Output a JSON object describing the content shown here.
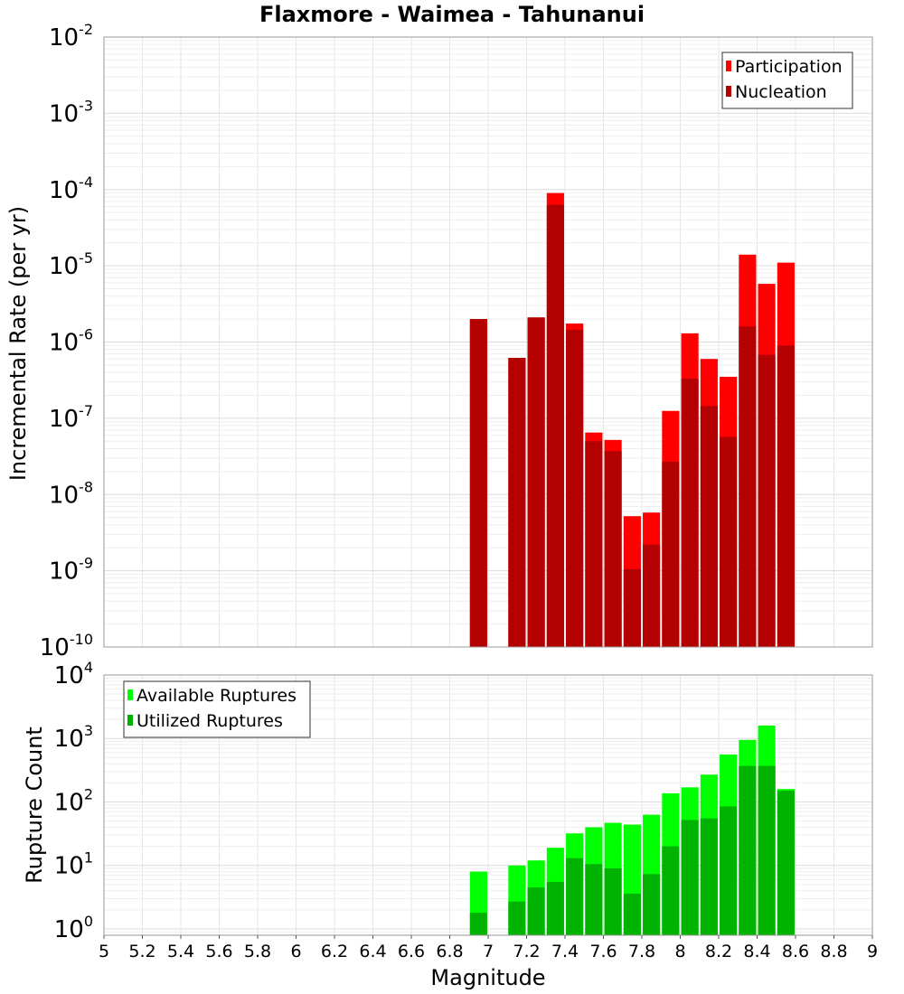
{
  "title": "Flaxmore - Waimea - Tahunanui",
  "chart_data": [
    {
      "type": "bar",
      "id": "incremental-rate",
      "ylabel": "Incremental Rate (per yr)",
      "yscale": "log",
      "ylim_exp": [
        -10,
        -2
      ],
      "ytick_exponents": [
        "-10",
        "-9",
        "-8",
        "-7",
        "-6",
        "-5",
        "-4",
        "-3",
        "-2"
      ],
      "legend_position": "top-right",
      "x": [
        6.95,
        7.15,
        7.25,
        7.35,
        7.45,
        7.55,
        7.65,
        7.75,
        7.85,
        7.95,
        8.05,
        8.15,
        8.25,
        8.35,
        8.45,
        8.55
      ],
      "series": [
        {
          "name": "Participation",
          "color": "#ff0000",
          "values": [
            2e-06,
            6.2e-07,
            2.1e-06,
            9e-05,
            1.75e-06,
            6.5e-08,
            5.2e-08,
            5.2e-09,
            5.8e-09,
            1.25e-07,
            1.3e-06,
            6e-07,
            3.5e-07,
            1.4e-05,
            5.8e-06,
            1.1e-05
          ]
        },
        {
          "name": "Nucleation",
          "color": "#b30000",
          "values": [
            2e-06,
            6.2e-07,
            2.1e-06,
            6.3e-05,
            1.45e-06,
            5e-08,
            3.7e-08,
            1.05e-09,
            2.2e-09,
            2.7e-08,
            3.3e-07,
            1.45e-07,
            5.7e-08,
            1.6e-06,
            6.8e-07,
            9e-07
          ]
        }
      ]
    },
    {
      "type": "bar",
      "id": "rupture-count",
      "ylabel": "Rupture Count",
      "yscale": "log",
      "ylim_exp": [
        -0.1,
        4
      ],
      "ytick_exponents": [
        "0",
        "1",
        "2",
        "3",
        "4"
      ],
      "legend_position": "top-left",
      "x": [
        6.95,
        7.15,
        7.25,
        7.35,
        7.45,
        7.55,
        7.65,
        7.75,
        7.85,
        7.95,
        8.05,
        8.15,
        8.25,
        8.35,
        8.45,
        8.55
      ],
      "series": [
        {
          "name": "Available Ruptures",
          "color": "#00ff00",
          "values": [
            8,
            10,
            12,
            19,
            32,
            40,
            47,
            44,
            63,
            137,
            170,
            270,
            560,
            950,
            1600,
            160
          ]
        },
        {
          "name": "Utilized Ruptures",
          "color": "#00b300",
          "values": [
            1.8,
            2.7,
            4.5,
            5.5,
            13,
            10.5,
            9,
            3.6,
            7.3,
            20,
            52,
            55,
            85,
            370,
            370,
            150
          ]
        }
      ]
    }
  ],
  "x_axis": {
    "xlabel": "Magnitude",
    "xlim": [
      5,
      9
    ],
    "tick_values": [
      5,
      5.2,
      5.4,
      5.6,
      5.8,
      6,
      6.2,
      6.4,
      6.6,
      6.8,
      7,
      7.2,
      7.4,
      7.6,
      7.8,
      8,
      8.2,
      8.4,
      8.6,
      8.8,
      9
    ],
    "tick_labels": [
      "5",
      "5.2",
      "5.4",
      "5.6",
      "5.8",
      "6",
      "6.2",
      "6.4",
      "6.6",
      "6.8",
      "7",
      "7.2",
      "7.4",
      "7.6",
      "7.8",
      "8",
      "8.2",
      "8.4",
      "8.6",
      "8.8",
      "9"
    ]
  },
  "ytick_base": "10",
  "grid": true
}
